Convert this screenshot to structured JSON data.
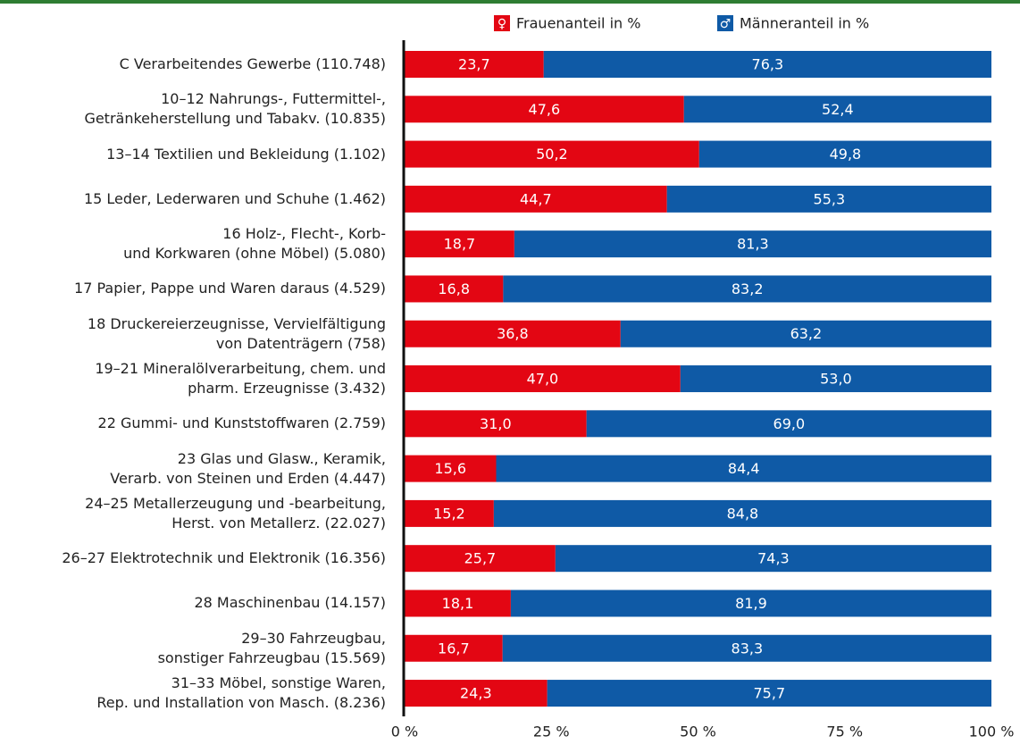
{
  "chart_data": {
    "type": "stacked_bar_horizontal",
    "categories": [
      "C Verarbeitendes Gewerbe (110.748)",
      "10–12 Nahrungs-, Futtermittel-,\nGetränkeherstellung und Tabakv. (10.835)",
      "13–14 Textilien und Bekleidung (1.102)",
      "15 Leder, Lederwaren und Schuhe (1.462)",
      "16 Holz-, Flecht-, Korb-\nund Korkwaren (ohne Möbel)  (5.080)",
      "17 Papier, Pappe und Waren daraus  (4.529)",
      "18 Druckereierzeugnisse, Vervielfältigung\nvon Datenträgern (758)",
      "19–21 Mineralölverarbeitung, chem. und\npharm. Erzeugnisse (3.432)",
      "22 Gummi- und Kunststoffwaren (2.759)",
      "23 Glas und Glasw., Keramik,\nVerarb. von Steinen und Erden  (4.447)",
      "24–25 Metallerzeugung und -bearbeitung,\nHerst. von Metallerz. (22.027)",
      "26–27 Elektrotechnik und Elektronik (16.356)",
      "28 Maschinenbau (14.157)",
      "29–30 Fahrzeugbau,\nsonstiger Fahrzeugbau (15.569)",
      "31–33 Möbel, sonstige Waren,\nRep. und Installation von Masch. (8.236)"
    ],
    "series": [
      {
        "name": "Frauenanteil in %",
        "color": "#e30613",
        "values": [
          23.7,
          47.6,
          50.2,
          44.7,
          18.7,
          16.8,
          36.8,
          47.0,
          31.0,
          15.6,
          15.2,
          25.7,
          18.1,
          16.7,
          24.3
        ],
        "value_labels": [
          "23,7",
          "47,6",
          "50,2",
          "44,7",
          "18,7",
          "16,8",
          "36,8",
          "47,0",
          "31,0",
          "15,6",
          "15,2",
          "25,7",
          "18,1",
          "16,7",
          "24,3"
        ]
      },
      {
        "name": "Männeranteil in %",
        "color": "#0f5aa6",
        "values": [
          76.3,
          52.4,
          49.8,
          55.3,
          81.3,
          83.2,
          63.2,
          53.0,
          69.0,
          84.4,
          84.8,
          74.3,
          81.9,
          83.3,
          75.7
        ],
        "value_labels": [
          "76,3",
          "52,4",
          "49,8",
          "55,3",
          "81,3",
          "83,2",
          "63,2",
          "53,0",
          "69,0",
          "84,4",
          "84,8",
          "74,3",
          "81,9",
          "83,3",
          "75,7"
        ]
      }
    ],
    "xlim": [
      0,
      100
    ],
    "xticks": [
      {
        "value": 0,
        "label": "0 %"
      },
      {
        "value": 25,
        "label": "25 %"
      },
      {
        "value": 50,
        "label": "50 %"
      },
      {
        "value": 75,
        "label": "75 %"
      },
      {
        "value": 100,
        "label": "100 %"
      }
    ],
    "legend": "top"
  }
}
